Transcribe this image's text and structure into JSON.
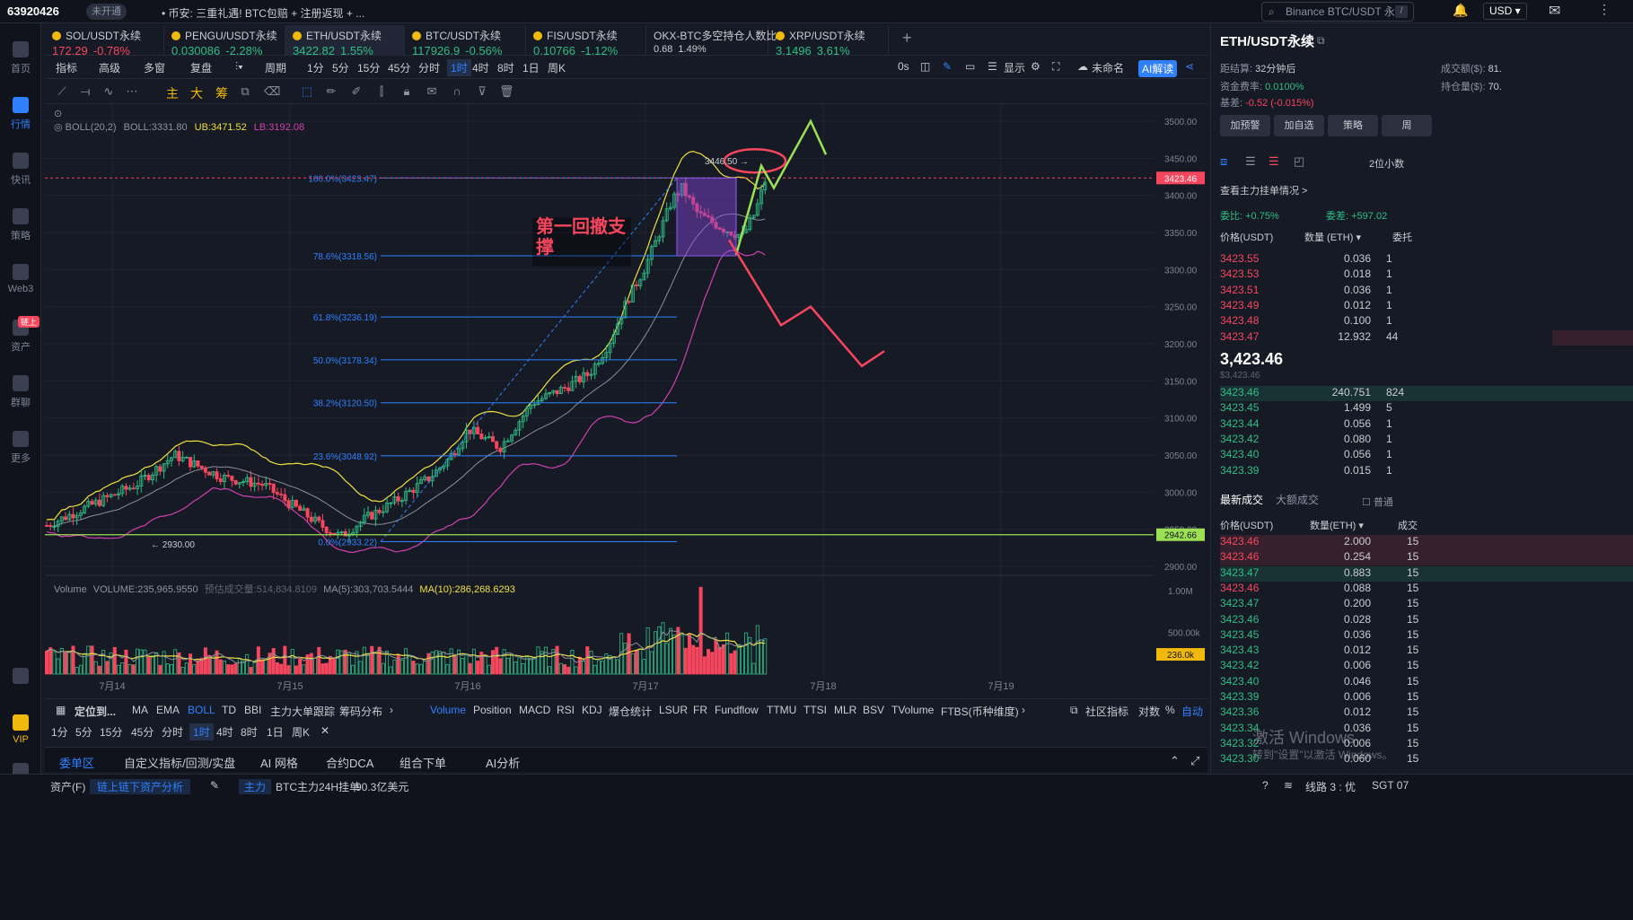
{
  "topbar": {
    "uid": "63920426",
    "badge": "未开通",
    "ticker": "• 币安: 三重礼遇! BTC包赔 + 注册返现 + ...",
    "search": "Binance BTC/USDT 永续",
    "search_key": "/",
    "currency": "USD ▾"
  },
  "sidebar": {
    "items": [
      {
        "label": "首页"
      },
      {
        "label": "行情"
      },
      {
        "label": "快讯"
      },
      {
        "label": "策略"
      },
      {
        "label": "Web3"
      },
      {
        "label": "资产",
        "tag": "链上"
      },
      {
        "label": "群聊"
      },
      {
        "label": "更多"
      },
      {
        "label": "VIP"
      }
    ]
  },
  "tabs": [
    {
      "name": "SOL/USDT永续",
      "price": "172.29",
      "change": "-0.78%",
      "dir": "dn"
    },
    {
      "name": "PENGU/USDT永续",
      "price": "0.030086",
      "change": "-2.28%",
      "dir": "up"
    },
    {
      "name": "ETH/USDT永续",
      "price": "3422.82",
      "change": "1.55%",
      "dir": "up"
    },
    {
      "name": "BTC/USDT永续",
      "price": "117926.9",
      "change": "-0.56%",
      "dir": "up"
    },
    {
      "name": "FIS/USDT永续",
      "price": "0.10766",
      "change": "-1.12%",
      "dir": "up"
    },
    {
      "name": "OKX-BTC多空持仓人数比",
      "price": "0.68",
      "change": "1.49%",
      "dir": "plain"
    },
    {
      "name": "XRP/USDT永续",
      "price": "3.1496",
      "change": "3.61%",
      "dir": "up"
    }
  ],
  "toolbar1": {
    "items": [
      "指标",
      "高级",
      "多窗",
      "复盘",
      "周期",
      "1分",
      "5分",
      "15分",
      "45分",
      "分时",
      "1时",
      "4时",
      "8时",
      "1日",
      "周K"
    ],
    "active": "1时",
    "right": [
      "0s",
      "显示",
      "未命名",
      "AI解读"
    ]
  },
  "toolbar2": {
    "labels": [
      "主",
      "大",
      "筹"
    ]
  },
  "chart_data": {
    "type": "candlestick",
    "symbol": "ETH/USDT永续",
    "indicator_boll": {
      "label": "BOLL(20,2)",
      "boll": "BOLL:3331.80",
      "ub": "UB:3471.52",
      "lb": "LB:3192.08"
    },
    "volume_label": {
      "name": "Volume",
      "volume": "VOLUME:235,965.9550",
      "predict": "预估成交量:514,834.8109",
      "ma5": "MA(5):303,703.5444",
      "ma10": "MA(10):286,268.6293"
    },
    "price_axis": [
      "3500.00",
      "3450.00",
      "3400.00",
      "3350.00",
      "3300.00",
      "3250.00",
      "3200.00",
      "3150.00",
      "3100.00",
      "3050.00",
      "3000.00",
      "2950.00",
      "2900.00"
    ],
    "volume_axis": [
      "1.00M",
      "500.00k"
    ],
    "time_axis": [
      "7月14",
      "7月15",
      "7月16",
      "7月17",
      "7月18",
      "7月19"
    ],
    "current_price": "3423.46",
    "line_price": "2942.66",
    "vol_current": "236.0k",
    "fib_levels": [
      {
        "label": "100.0%(3423.47)",
        "value": 3423.47
      },
      {
        "label": "78.6%(3318.56)",
        "value": 3318.56
      },
      {
        "label": "61.8%(3236.19)",
        "value": 3236.19
      },
      {
        "label": "50.0%(3178.34)",
        "value": 3178.34
      },
      {
        "label": "38.2%(3120.50)",
        "value": 3120.5
      },
      {
        "label": "23.6%(3048.92)",
        "value": 3048.92
      },
      {
        "label": "0.0%(2933.22)",
        "value": 2933.22
      }
    ],
    "annotations": {
      "high": "3446.50 →",
      "low": "← 2930.00",
      "note": "第一回撤支撑"
    },
    "colors": {
      "up": "#2ebd85",
      "down": "#f6465d",
      "boll_mid": "#8a8f99",
      "boll_up": "#f0e040",
      "boll_low": "#d040b0",
      "fib": "#2f80ff",
      "projection_up": "#9be055",
      "projection_down": "#f6465d"
    }
  },
  "indicators": {
    "main": [
      "定位到...",
      "MA",
      "EMA",
      "BOLL",
      "TD",
      "BBI",
      "主力大单跟踪",
      "筹码分布"
    ],
    "sub": [
      "Volume",
      "Position",
      "MACD",
      "RSI",
      "KDJ",
      "爆仓统计",
      "LSUR",
      "FR",
      "Fundflow",
      "TTMU",
      "TTSI",
      "MLR",
      "BSV",
      "TVolume",
      "FTBS(币种维度)"
    ],
    "right": [
      "社区指标",
      "对数",
      "%",
      "自动"
    ]
  },
  "periods2": [
    "1分",
    "5分",
    "15分",
    "45分",
    "分时",
    "1时",
    "4时",
    "8时",
    "1日",
    "周K"
  ],
  "bottom_tabs": [
    "委单区",
    "自定义指标/回测/实盘",
    "AI 网格",
    "合约DCA",
    "组合下单",
    "AI分析"
  ],
  "statusbar": {
    "asset": "资产(F)",
    "analysis": "链上链下资产分析",
    "main": "主力",
    "text": "BTC主力24H挂单",
    "amount": "90.3亿美元",
    "line": "线路 3 : 优",
    "tz": "SGT 07"
  },
  "right_panel": {
    "title": "ETH/USDT永续",
    "kv": [
      {
        "k": "距结算:",
        "v": "32分钟后"
      },
      {
        "k": "成交额($):",
        "v": "81."
      },
      {
        "k": "资金费率:",
        "v": "0.0100%"
      },
      {
        "k": "持仓量($):",
        "v": "70."
      },
      {
        "k": "基差:",
        "v": "-0.52 (-0.015%)"
      }
    ],
    "buttons": [
      "加预警",
      "加自选",
      "策略",
      "周"
    ],
    "decimals": "2位小数",
    "depth_link": "查看主力挂单情况 >",
    "weibi": "委比: +0.75%",
    "weicha": "委差: +597.02",
    "ob_headers": [
      "价格(USDT)",
      "数量 (ETH) ▾",
      "委托"
    ],
    "asks": [
      {
        "p": "3423.55",
        "q": "0.036",
        "t": "1"
      },
      {
        "p": "3423.53",
        "q": "0.018",
        "t": "1"
      },
      {
        "p": "3423.51",
        "q": "0.036",
        "t": "1"
      },
      {
        "p": "3423.49",
        "q": "0.012",
        "t": "1"
      },
      {
        "p": "3423.48",
        "q": "0.100",
        "t": "1"
      },
      {
        "p": "3423.47",
        "q": "12.932",
        "t": "44"
      }
    ],
    "last": "3,423.46",
    "last_sub": "$3,423.46",
    "bids": [
      {
        "p": "3423.46",
        "q": "240.751",
        "t": "824"
      },
      {
        "p": "3423.45",
        "q": "1.499",
        "t": "5"
      },
      {
        "p": "3423.44",
        "q": "0.056",
        "t": "1"
      },
      {
        "p": "3423.42",
        "q": "0.080",
        "t": "1"
      },
      {
        "p": "3423.40",
        "q": "0.056",
        "t": "1"
      },
      {
        "p": "3423.39",
        "q": "0.015",
        "t": "1"
      }
    ],
    "trade_tabs": [
      "最新成交",
      "大额成交"
    ],
    "trade_opt": "普通",
    "trade_headers": [
      "价格(USDT)",
      "数量(ETH) ▾",
      "成交"
    ],
    "trades": [
      {
        "p": "3423.46",
        "q": "2.000",
        "d": "dn"
      },
      {
        "p": "3423.46",
        "q": "0.254",
        "d": "dn"
      },
      {
        "p": "3423.47",
        "q": "0.883",
        "d": "up"
      },
      {
        "p": "3423.46",
        "q": "0.088",
        "d": "dn"
      },
      {
        "p": "3423.47",
        "q": "0.200",
        "d": "up"
      },
      {
        "p": "3423.46",
        "q": "0.028",
        "d": "up"
      },
      {
        "p": "3423.45",
        "q": "0.036",
        "d": "up"
      },
      {
        "p": "3423.43",
        "q": "0.012",
        "d": "up"
      },
      {
        "p": "3423.42",
        "q": "0.006",
        "d": "up"
      },
      {
        "p": "3423.40",
        "q": "0.046",
        "d": "up"
      },
      {
        "p": "3423.39",
        "q": "0.006",
        "d": "up"
      },
      {
        "p": "3423.36",
        "q": "0.012",
        "d": "up"
      },
      {
        "p": "3423.34",
        "q": "0.036",
        "d": "up"
      },
      {
        "p": "3423.32",
        "q": "0.006",
        "d": "up"
      },
      {
        "p": "3423.30",
        "q": "0.060",
        "d": "up"
      }
    ],
    "trade_time": "15"
  },
  "watermark": {
    "line1": "激活 Windows",
    "line2": "转到\"设置\"以激活 Windows。"
  }
}
